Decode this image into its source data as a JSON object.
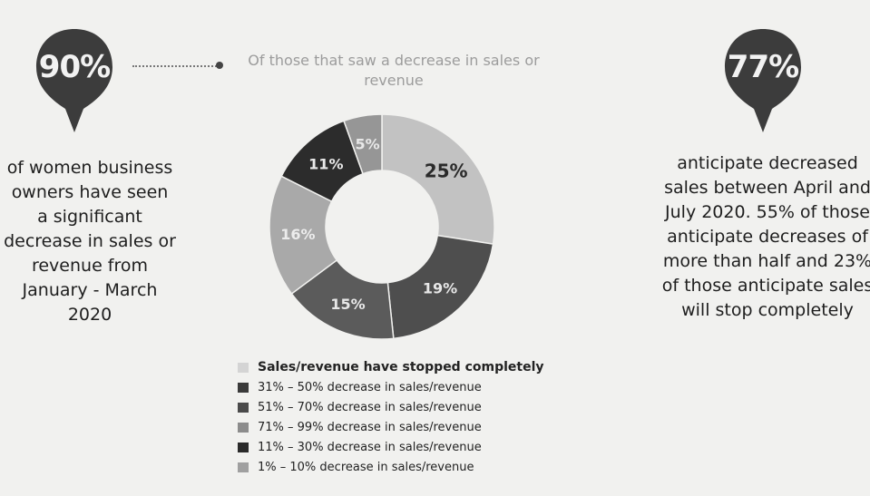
{
  "left_callout": {
    "value": "90%",
    "text": "of women business owners have seen a significant decrease in sales or revenue from January - March 2020",
    "color": "#3c3c3c"
  },
  "right_callout": {
    "value": "77%",
    "text": "anticipate decreased sales between April and July 2020. 55% of those anticipate decreases of more than half and 23% of those anticipate sales will stop completely",
    "color": "#3c3c3c"
  },
  "chart_data": {
    "type": "pie",
    "donut": true,
    "title": "Of those that saw a decrease in sales or revenue",
    "slices": [
      {
        "label": "31% – 50% decrease in sales/revenue",
        "value": 25,
        "value_label": "25%",
        "color": "#c2c2c2"
      },
      {
        "label": "51% – 70% decrease in sales/revenue",
        "value": 19,
        "value_label": "19%",
        "color": "#4e4e4e"
      },
      {
        "label": "71% – 99% decrease in sales/revenue",
        "value": 15,
        "value_label": "15%",
        "color": "#5b5b5b"
      },
      {
        "label": "Sales/revenue have stopped completely",
        "value": 16,
        "value_label": "16%",
        "color": "#a9a9a9"
      },
      {
        "label": "11% – 30% decrease in sales/revenue",
        "value": 11,
        "value_label": "11%",
        "color": "#2c2c2c"
      },
      {
        "label": "1% – 10% decrease in sales/revenue",
        "value": 5,
        "value_label": "5%",
        "color": "#969696"
      }
    ],
    "legend": [
      {
        "label": "Sales/revenue have stopped completely",
        "color": "#d4d4d4"
      },
      {
        "label": "31% – 50% decrease in sales/revenue",
        "color": "#3a3a3a"
      },
      {
        "label": "51% – 70% decrease in sales/revenue",
        "color": "#4a4a4a"
      },
      {
        "label": "71% – 99% decrease in sales/revenue",
        "color": "#8c8c8c"
      },
      {
        "label": "11% – 30% decrease in sales/revenue",
        "color": "#2a2a2a"
      },
      {
        "label": "1% – 10% decrease in sales/revenue",
        "color": "#a0a0a0"
      }
    ],
    "legend_position": "bottom"
  }
}
